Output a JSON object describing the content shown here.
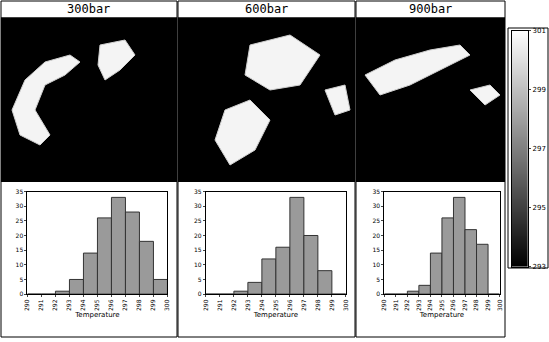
{
  "chart_data": [
    {
      "type": "bar",
      "title": "300bar",
      "x_label": "Temperature",
      "color": "#9a9a9a",
      "grid": false,
      "bins": [
        290,
        291,
        292,
        293,
        294,
        295,
        296,
        297,
        298,
        299,
        300
      ],
      "counts": [
        0,
        0,
        1,
        5,
        14,
        26,
        33,
        28,
        18,
        5
      ],
      "xlim": [
        290,
        300
      ],
      "xticks": [
        290,
        291,
        292,
        293,
        294,
        295,
        296,
        297,
        298,
        299,
        300
      ],
      "ylim": [
        0,
        35
      ],
      "yticks": [
        0,
        5,
        10,
        15,
        20,
        25,
        30,
        35
      ]
    },
    {
      "type": "bar",
      "title": "600bar",
      "x_label": "Temperature",
      "color": "#9a9a9a",
      "grid": false,
      "bins": [
        290,
        291,
        292,
        293,
        294,
        295,
        296,
        297,
        298,
        299,
        300
      ],
      "counts": [
        0,
        0,
        1,
        4,
        12,
        16,
        33,
        20,
        8,
        0
      ],
      "xlim": [
        290,
        300
      ],
      "xticks": [
        290,
        291,
        292,
        293,
        294,
        295,
        296,
        297,
        298,
        299,
        300
      ],
      "ylim": [
        0,
        35
      ],
      "yticks": [
        0,
        5,
        10,
        15,
        20,
        25,
        30,
        35
      ]
    },
    {
      "type": "bar",
      "title": "900bar",
      "x_label": "Temperature",
      "color": "#9a9a9a",
      "grid": false,
      "bins": [
        290,
        291,
        292,
        293,
        294,
        295,
        296,
        297,
        298,
        299,
        300
      ],
      "counts": [
        0,
        0,
        1,
        3,
        14,
        26,
        33,
        22,
        17,
        0
      ],
      "xlim": [
        290,
        300
      ],
      "xticks": [
        290,
        291,
        292,
        293,
        294,
        295,
        296,
        297,
        298,
        299,
        300
      ],
      "ylim": [
        0,
        35
      ],
      "yticks": [
        0,
        5,
        10,
        15,
        20,
        25,
        30,
        35
      ]
    },
    {
      "type": "colorbar",
      "ylim": [
        293,
        301
      ],
      "yticks": [
        293,
        295,
        297,
        299,
        301
      ]
    }
  ]
}
